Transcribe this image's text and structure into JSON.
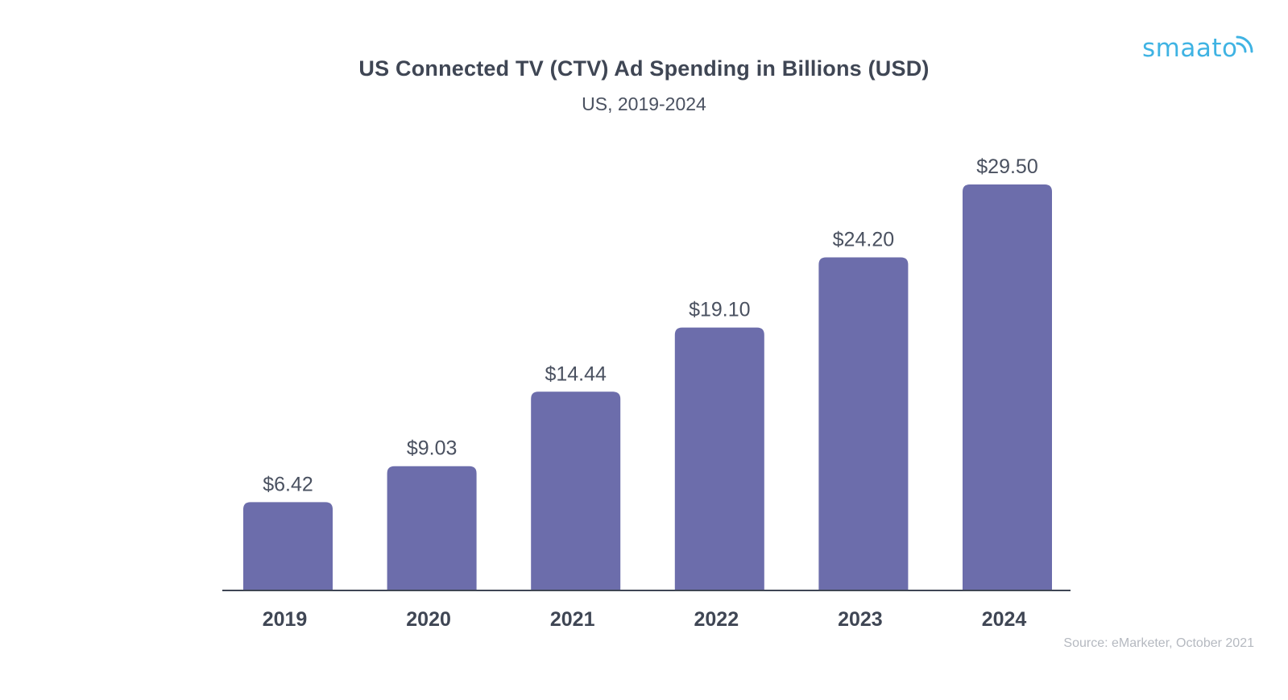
{
  "chart_data": {
    "type": "bar",
    "title": "US Connected TV (CTV) Ad Spending in Billions (USD)",
    "subtitle": "US, 2019-2024",
    "xlabel": "",
    "ylabel": "",
    "categories": [
      "2019",
      "2020",
      "2021",
      "2022",
      "2023",
      "2024"
    ],
    "values": [
      6.42,
      9.03,
      14.44,
      19.1,
      24.2,
      29.5
    ],
    "value_labels": [
      "$6.42",
      "$9.03",
      "$14.44",
      "$19.10",
      "$24.20",
      "$29.50"
    ],
    "ylim": [
      0,
      29.5
    ],
    "grid": false,
    "legend": "none",
    "bar_color": "#6c6dab",
    "source": "Source: eMarketer, October 2021"
  },
  "branding": {
    "logo_text": "smaato",
    "logo_color": "#3fb3e3"
  }
}
